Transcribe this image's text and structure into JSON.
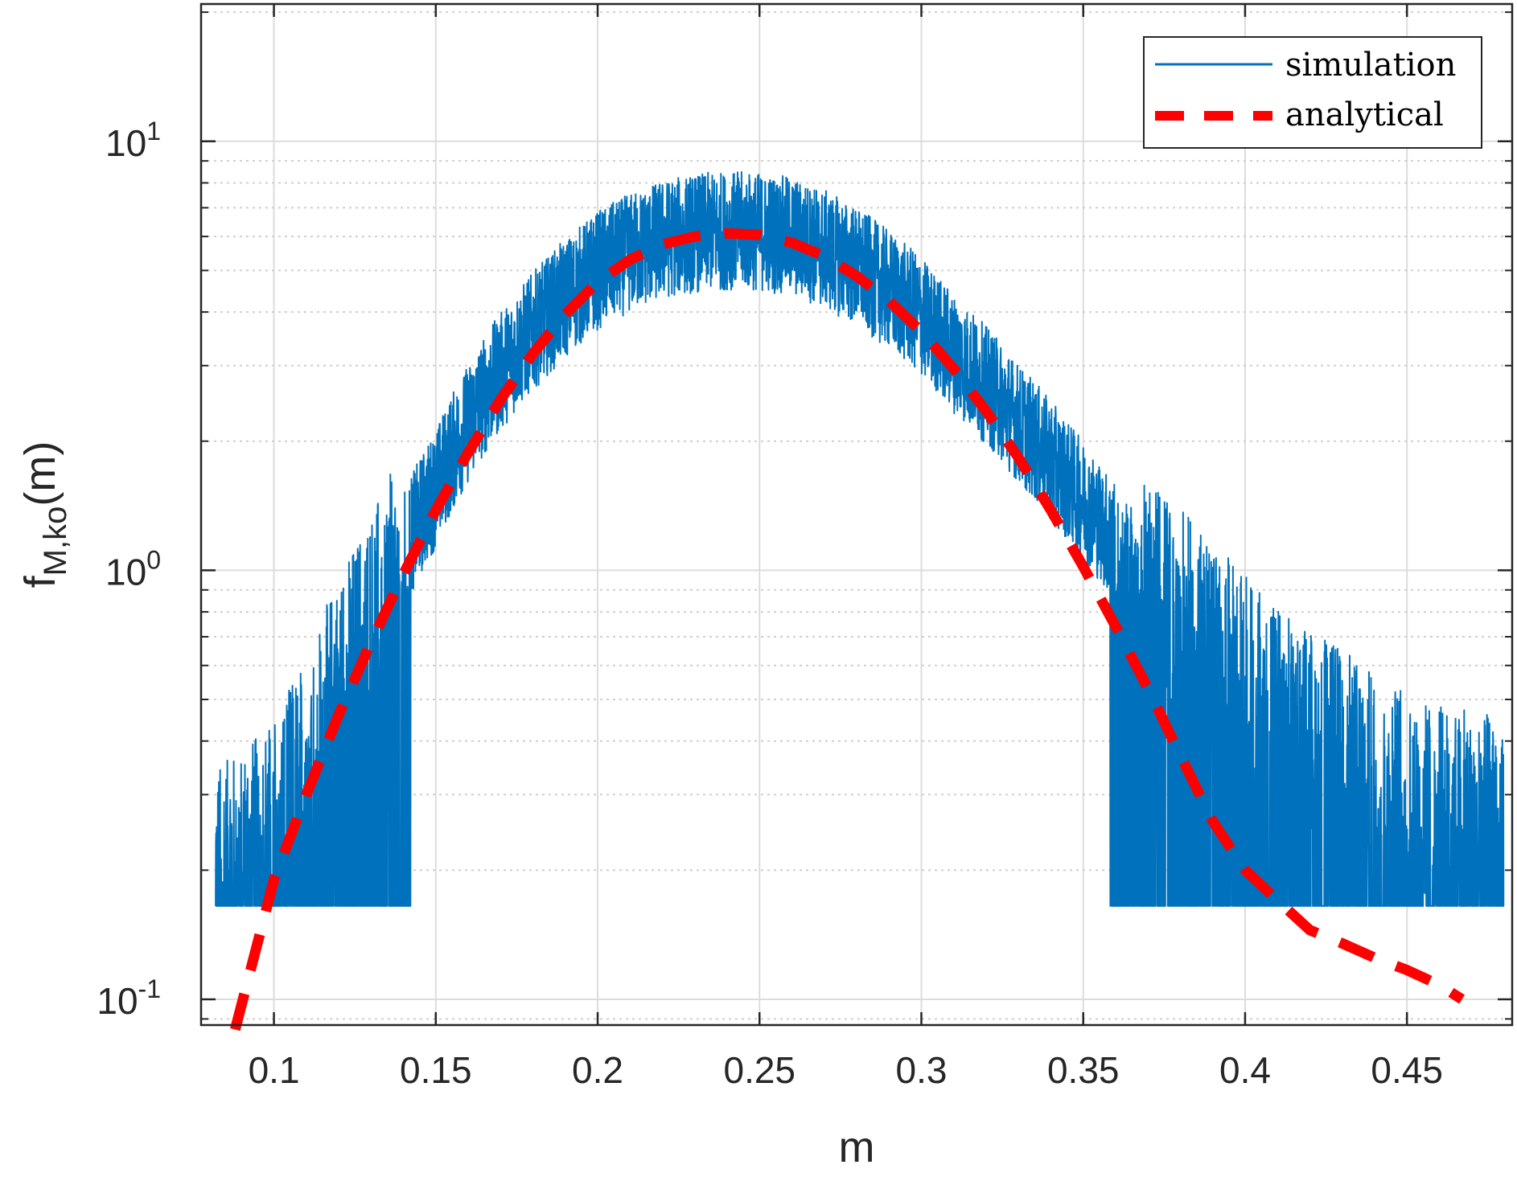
{
  "chart_data": {
    "type": "line",
    "title": "",
    "xlabel": "m",
    "ylabel": {
      "base": "f",
      "subscript": "M,ko",
      "suffix": "(m)"
    },
    "xlim": [
      0.0775,
      0.4825
    ],
    "ylim_log10": [
      -1.06,
      1.32
    ],
    "yscale": "log",
    "grid": true,
    "minor_grid_y": true,
    "legend_position": "top-right",
    "x_ticks": [
      {
        "value": 0.1,
        "label": "0.1"
      },
      {
        "value": 0.15,
        "label": "0.15"
      },
      {
        "value": 0.2,
        "label": "0.2"
      },
      {
        "value": 0.25,
        "label": "0.25"
      },
      {
        "value": 0.3,
        "label": "0.3"
      },
      {
        "value": 0.35,
        "label": "0.35"
      },
      {
        "value": 0.4,
        "label": "0.4"
      },
      {
        "value": 0.45,
        "label": "0.45"
      }
    ],
    "y_ticks": [
      {
        "value": 0.1,
        "base": "10",
        "exp": "-1"
      },
      {
        "value": 1,
        "base": "10",
        "exp": "0"
      },
      {
        "value": 10,
        "base": "10",
        "exp": "1"
      }
    ],
    "series": [
      {
        "name": "simulation",
        "color": "#0072BD",
        "style": "solid",
        "kind": "noisy",
        "noise_floor": 0.165,
        "envelope": {
          "x": [
            0.082,
            0.09,
            0.1,
            0.11,
            0.12,
            0.13,
            0.14,
            0.15,
            0.16,
            0.17,
            0.18,
            0.19,
            0.2,
            0.21,
            0.22,
            0.23,
            0.24,
            0.25,
            0.26,
            0.27,
            0.28,
            0.29,
            0.3,
            0.31,
            0.32,
            0.33,
            0.34,
            0.35,
            0.36,
            0.37,
            0.38,
            0.39,
            0.4,
            0.41,
            0.42,
            0.43,
            0.44,
            0.45,
            0.46,
            0.47,
            0.48
          ],
          "y": [
            0.2,
            0.22,
            0.26,
            0.36,
            0.55,
            0.78,
            1.1,
            1.55,
            2.2,
            2.9,
            3.6,
            4.3,
            5.0,
            5.5,
            5.9,
            6.1,
            6.2,
            6.15,
            6.0,
            5.6,
            5.1,
            4.5,
            3.9,
            3.2,
            2.7,
            2.2,
            1.8,
            1.45,
            1.15,
            0.95,
            0.8,
            0.67,
            0.56,
            0.47,
            0.42,
            0.38,
            0.33,
            0.3,
            0.28,
            0.27,
            0.27
          ]
        }
      },
      {
        "name": "analytical",
        "color": "#FF0000",
        "style": "dashed",
        "x": [
          0.088,
          0.1,
          0.11,
          0.12,
          0.13,
          0.14,
          0.15,
          0.16,
          0.17,
          0.18,
          0.19,
          0.2,
          0.21,
          0.22,
          0.23,
          0.24,
          0.25,
          0.26,
          0.27,
          0.28,
          0.29,
          0.3,
          0.31,
          0.32,
          0.33,
          0.34,
          0.35,
          0.36,
          0.37,
          0.38,
          0.39,
          0.4,
          0.41,
          0.42,
          0.43,
          0.44,
          0.45,
          0.46,
          0.467
        ],
        "y": [
          0.085,
          0.19,
          0.3,
          0.46,
          0.68,
          0.98,
          1.38,
          1.88,
          2.5,
          3.2,
          3.95,
          4.7,
          5.3,
          5.75,
          6.0,
          6.1,
          6.05,
          5.8,
          5.4,
          4.85,
          4.25,
          3.6,
          2.95,
          2.35,
          1.83,
          1.38,
          1.02,
          0.74,
          0.53,
          0.37,
          0.26,
          0.2,
          0.17,
          0.145,
          0.135,
          0.125,
          0.117,
          0.108,
          0.1
        ]
      }
    ]
  }
}
